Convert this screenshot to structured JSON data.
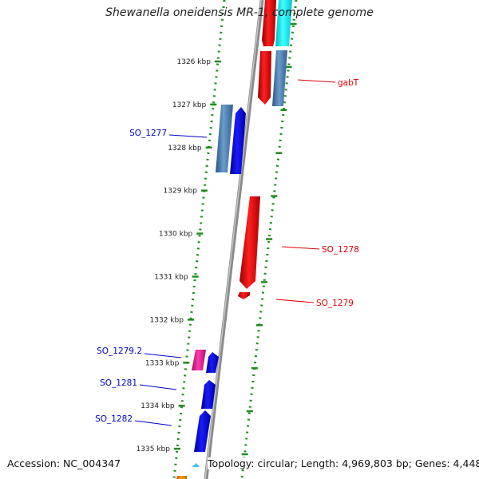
{
  "title": "Shewanella oneidensis MR-1, complete genome",
  "footer": {
    "accession": "Accession: NC_004347",
    "summary": "Topology: circular; Length: 4,969,803 bp; Genes: 4,448"
  },
  "colors": {
    "backbone": "#888888",
    "tick_ring": "#1e8c1e",
    "forward_label": "#dd0000",
    "reverse_label": "#0000cc"
  },
  "ticks": [
    "1326 kbp",
    "1327 kbp",
    "1328 kbp",
    "1329 kbp",
    "1330 kbp",
    "1331 kbp",
    "1332 kbp",
    "1333 kbp",
    "1334 kbp",
    "1335 kbp"
  ],
  "gene_labels": [
    {
      "text": "gabT",
      "strand": "forward"
    },
    {
      "text": "SO_1277",
      "strand": "reverse"
    },
    {
      "text": "SO_1278",
      "strand": "forward"
    },
    {
      "text": "SO_1279",
      "strand": "forward"
    },
    {
      "text": "SO_1279.2",
      "strand": "reverse"
    },
    {
      "text": "SO_1281",
      "strand": "reverse"
    },
    {
      "text": "SO_1282",
      "strand": "reverse"
    }
  ]
}
